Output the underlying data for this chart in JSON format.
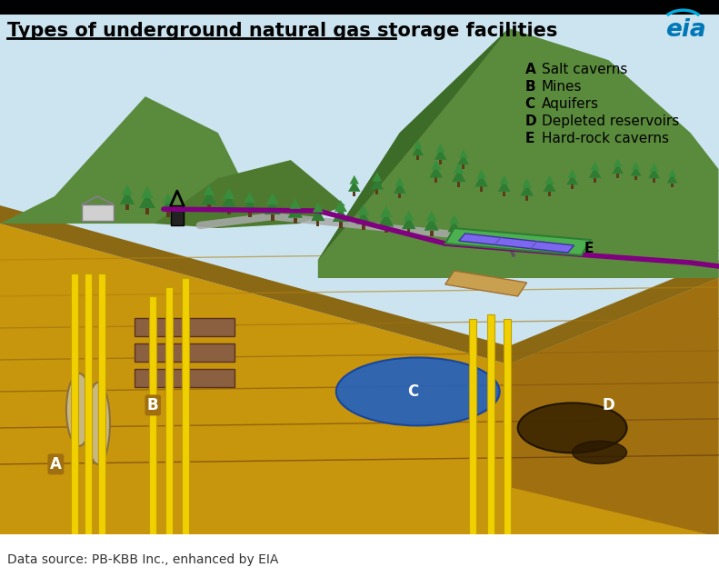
{
  "title": "Types of underground natural gas storage facilities",
  "source": "Data source: PB-KBB Inc., enhanced by EIA",
  "legend_items": [
    [
      "A",
      "Salt caverns"
    ],
    [
      "B",
      "Mines"
    ],
    [
      "C",
      "Aquifers"
    ],
    [
      "D",
      "Depleted reservoirs"
    ],
    [
      "E",
      "Hard-rock caverns"
    ]
  ],
  "bg_color": "#ffffff",
  "title_color": "#000000",
  "title_fontsize": 15,
  "source_fontsize": 10,
  "legend_fontsize": 11,
  "colors": {
    "sky": "#cce4f0",
    "mountain_green": "#5a8a3c",
    "mountain_dark": "#3d6b28",
    "ground_main": "#c8960c",
    "ground_side": "#a07010",
    "ground_top": "#8b6914",
    "pipe_yellow": "#f0d000",
    "pipe_yellow_edge": "#c0a000",
    "cavern_fill": "#c8b880",
    "cavern_edge": "#8b7040",
    "water_blue": "#2060c0",
    "water_blue_edge": "#1040a0",
    "mine_brown": "#8b6040",
    "mine_edge": "#5a3020",
    "tree_trunk": "#5d3a1a",
    "tree_dark": "#2e7d32",
    "tree_light": "#388e3c",
    "road_gray": "#aaaaaa",
    "pipe_purple": "#800080",
    "platform_green": "#4caf50",
    "platform_edge": "#2e7d32",
    "solar_purple": "#7b68ee",
    "depleted_fill": "#3d2800",
    "depleted_edge": "#1a1000",
    "label_color": "#000000",
    "eia_blue": "#0077b6",
    "eia_arc": "#00aadd",
    "layer1": "#b08010",
    "layer2": "#a07010",
    "layer3": "#906010",
    "layer4": "#805010",
    "layer5": "#704010",
    "layer6": "#603010"
  }
}
